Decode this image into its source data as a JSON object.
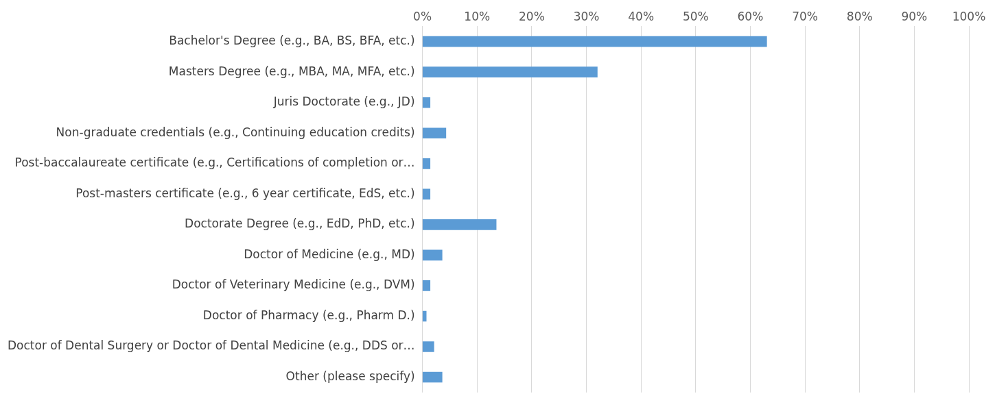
{
  "chart_data": {
    "type": "bar",
    "orientation": "horizontal",
    "categories": [
      "Bachelor's Degree (e.g., BA, BS, BFA, etc.)",
      "Masters Degree (e.g., MBA, MA, MFA, etc.)",
      "Juris Doctorate (e.g., JD)",
      "Non-graduate credentials (e.g., Continuing education credits)",
      "Post-baccalaureate certificate (e.g., Certifications of completion or…",
      "Post-masters certificate (e.g., 6 year certificate, EdS, etc.)",
      "Doctorate Degree (e.g., EdD, PhD, etc.)",
      "Doctor of Medicine (e.g., MD)",
      "Doctor of Veterinary Medicine (e.g., DVM)",
      "Doctor of Pharmacy (e.g., Pharm D.)",
      "Doctor of Dental Surgery or Doctor of Dental Medicine (e.g., DDS or…",
      "Other (please specify)"
    ],
    "values": [
      63,
      32,
      1.4,
      4.3,
      1.4,
      1.4,
      13.5,
      3.6,
      1.4,
      0.7,
      2.1,
      3.6
    ],
    "color": "#5b9bd5",
    "xlim": [
      0,
      100
    ],
    "xticks": [
      {
        "value": 0,
        "label": "0%"
      },
      {
        "value": 10,
        "label": "10%"
      },
      {
        "value": 20,
        "label": "20%"
      },
      {
        "value": 30,
        "label": "30%"
      },
      {
        "value": 40,
        "label": "40%"
      },
      {
        "value": 50,
        "label": "50%"
      },
      {
        "value": 60,
        "label": "60%"
      },
      {
        "value": 70,
        "label": "70%"
      },
      {
        "value": 80,
        "label": "80%"
      },
      {
        "value": 90,
        "label": "90%"
      },
      {
        "value": 100,
        "label": "100%"
      }
    ],
    "grid": "x",
    "legend": false
  }
}
